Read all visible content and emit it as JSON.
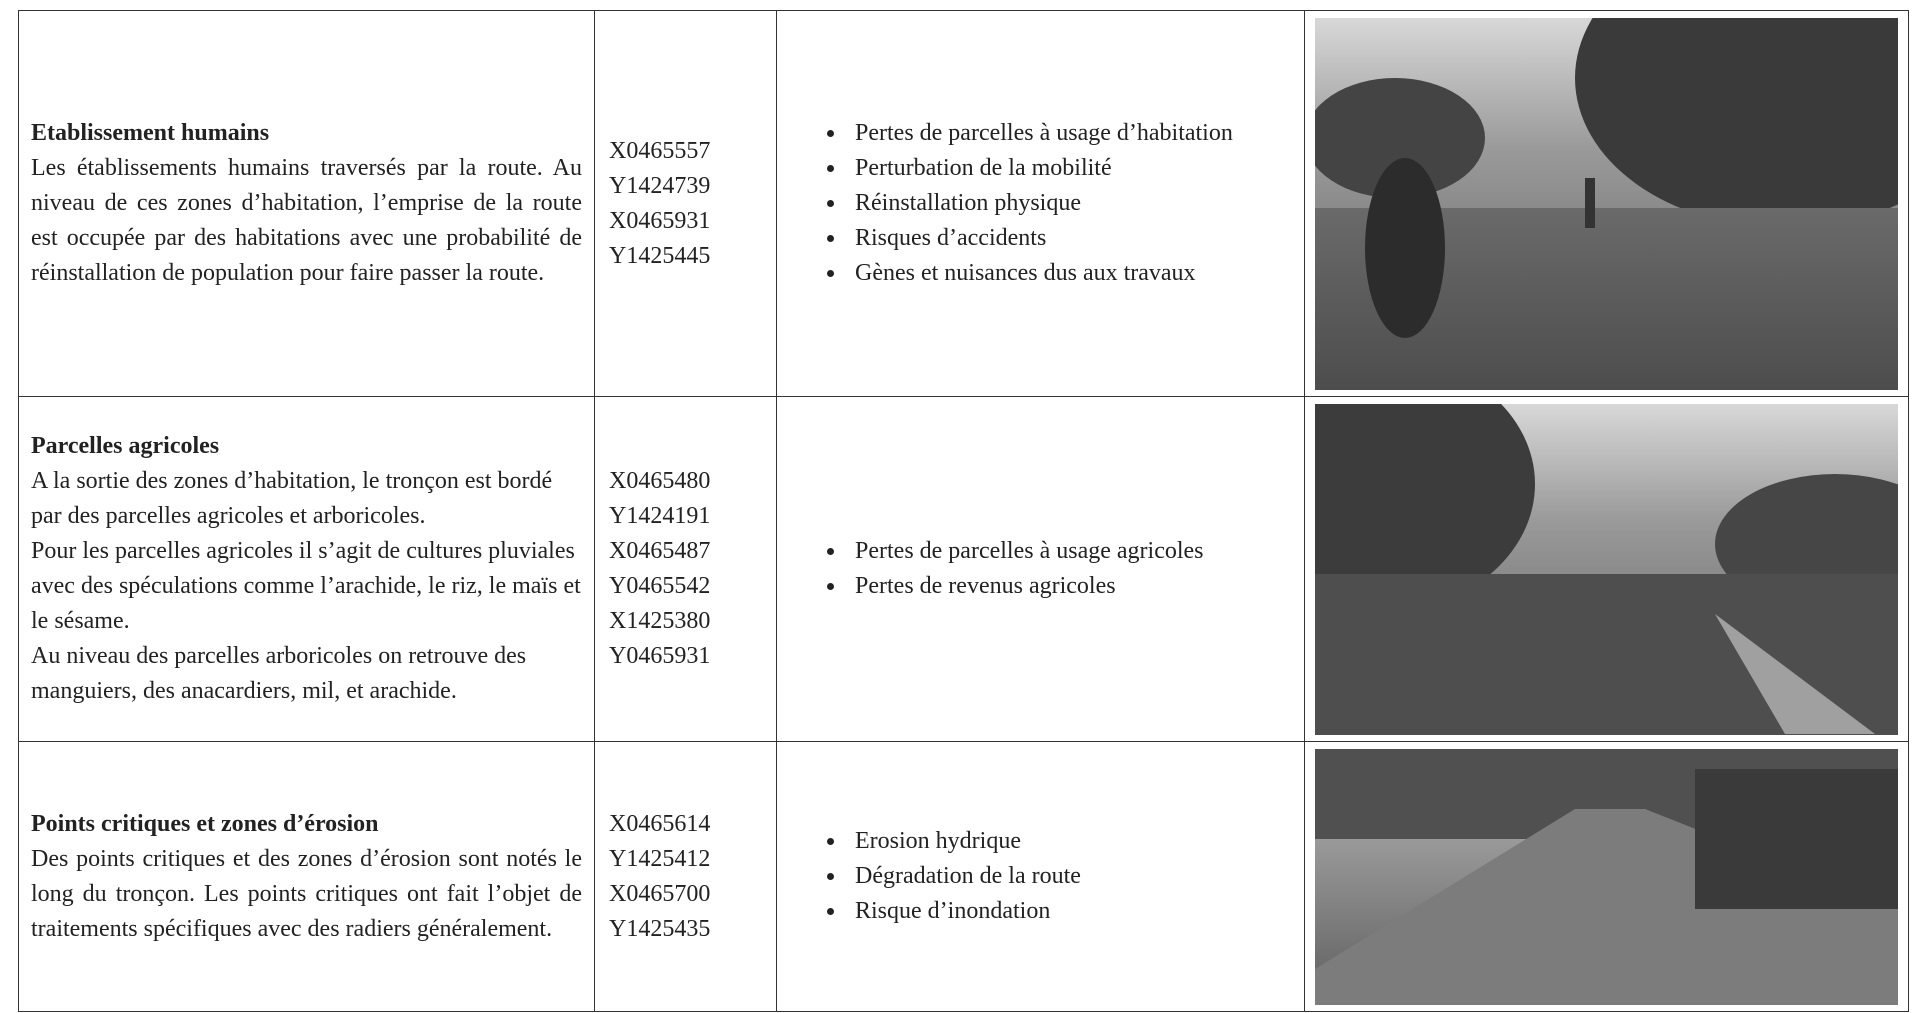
{
  "table": {
    "rows": [
      {
        "title": "Etablissement humains",
        "description": [
          "Les établissements humains traversés par la route. Au niveau de ces zones d’habitation, l’emprise de la route est occupée par des habitations avec une probabilité de réinstallation de population pour faire passer la route."
        ],
        "coordinates": [
          "X0465557",
          "Y1424739",
          "X0465931",
          "Y1425445"
        ],
        "impacts": [
          "Pertes de parcelles à usage d’habitation",
          "Perturbation de la mobilité",
          "Réinstallation physique",
          "Risques d’accidents",
          "Gènes et nuisances dus aux travaux"
        ]
      },
      {
        "title": "Parcelles agricoles",
        "description": [
          "A la sortie des zones d’habitation, le tronçon est bordé par des parcelles agricoles et arboricoles.",
          "Pour les parcelles agricoles il s’agit de cultures pluviales avec des spéculations comme l’arachide, le riz, le maïs et le sésame.",
          "Au niveau des parcelles arboricoles on retrouve des manguiers, des anacardiers, mil, et arachide."
        ],
        "coordinates": [
          "X0465480",
          "Y1424191",
          "X0465487",
          "Y0465542",
          "X1425380",
          "Y0465931"
        ],
        "impacts": [
          "Pertes de parcelles à usage agricoles",
          "Pertes de revenus agricoles"
        ]
      },
      {
        "title": "Points critiques et zones d’érosion",
        "description": [
          "Des points critiques et des zones d’érosion sont notés le long du tronçon. Les points critiques ont fait l’objet de traitements spécifiques avec des radiers généralement."
        ],
        "coordinates": [
          "X0465614",
          "Y1425412",
          "X0465700",
          "Y1425435"
        ],
        "impacts": [
          "Erosion hydrique",
          "Dégradation de la route",
          "Risque d’inondation"
        ]
      }
    ]
  }
}
